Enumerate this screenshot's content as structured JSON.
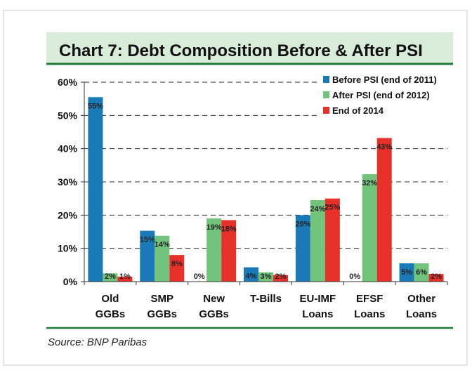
{
  "chart_data": {
    "type": "bar",
    "title": "Chart 7: Debt Composition Before & After PSI",
    "source": "Source: BNP Paribas",
    "xlabel": "",
    "ylabel": "",
    "ylim": [
      0,
      60
    ],
    "yticks": [
      0,
      10,
      20,
      30,
      40,
      50,
      60
    ],
    "ytick_labels": [
      "0%",
      "10%",
      "20%",
      "30%",
      "40%",
      "50%",
      "60%"
    ],
    "grid": true,
    "legend_position": "top-right",
    "categories": [
      [
        "Old",
        "GGBs"
      ],
      [
        "SMP",
        "GGBs"
      ],
      [
        "New",
        "GGBs"
      ],
      [
        "T-Bills",
        ""
      ],
      [
        "EU-IMF",
        "Loans"
      ],
      [
        "EFSF",
        "Loans"
      ],
      [
        "Other",
        "Loans"
      ]
    ],
    "series": [
      {
        "name": "Before PSI (end of 2011)",
        "color": "#1a7ab8",
        "values": [
          55.5,
          15.3,
          0,
          4.3,
          20,
          0,
          5.5
        ],
        "labels": [
          "55%",
          "15%",
          "0%",
          "4%",
          "20%",
          "0%",
          "5%"
        ]
      },
      {
        "name": "After PSI (end of 2012)",
        "color": "#72c47c",
        "values": [
          2.5,
          13.8,
          19,
          2.8,
          24.5,
          32.3,
          5.5
        ],
        "labels": [
          "2%",
          "14%",
          "19%",
          "3%",
          "24%",
          "32%",
          "6%"
        ]
      },
      {
        "name": "End of 2014",
        "color": "#e8302b",
        "values": [
          1.5,
          8,
          18.5,
          2,
          25,
          43.2,
          2.3
        ],
        "labels": [
          "1%",
          "8%",
          "18%",
          "2%",
          "25%",
          "43%",
          "2%"
        ]
      }
    ]
  }
}
